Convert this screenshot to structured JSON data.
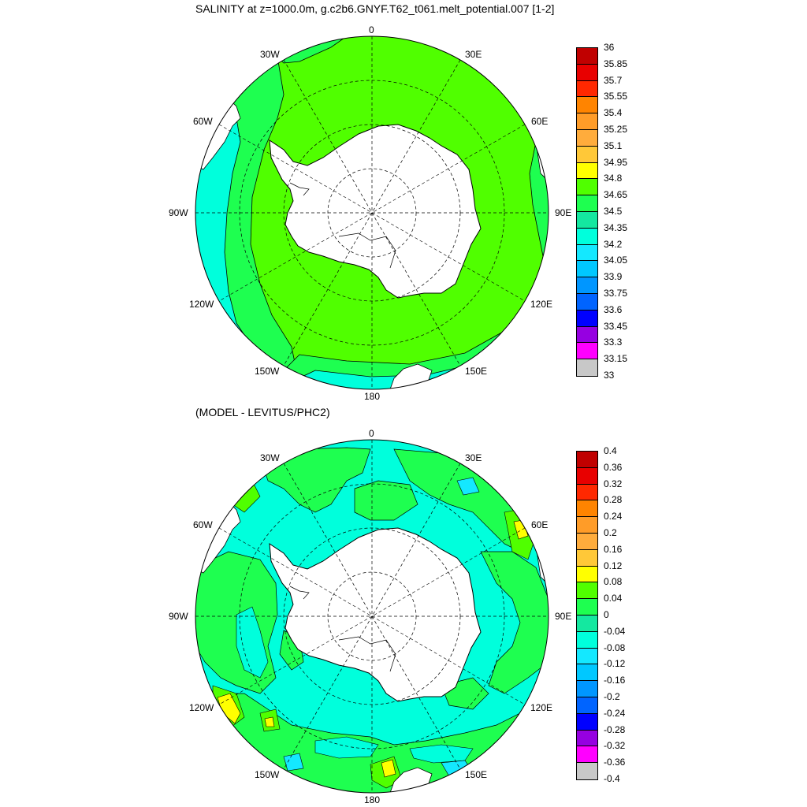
{
  "maps": [
    {
      "title": "SALINITY at z=1000.0m, g.c2b6.GNYF.T62_t061.melt_potential.007 [1-2]",
      "lon_labels": [
        "0",
        "30E",
        "60E",
        "90E",
        "120E",
        "150E",
        "180",
        "150W",
        "120W",
        "90W",
        "60W",
        "30W"
      ],
      "colorbar_labels": [
        "36",
        "35.85",
        "35.7",
        "35.55",
        "35.4",
        "35.25",
        "35.1",
        "34.95",
        "34.8",
        "34.65",
        "34.5",
        "34.35",
        "34.2",
        "34.05",
        "33.9",
        "33.75",
        "33.6",
        "33.45",
        "33.3",
        "33.15",
        "33"
      ],
      "colorbar_colors": [
        "#c00000",
        "#e80000",
        "#ff2800",
        "#ff8400",
        "#ff9c28",
        "#ffac3c",
        "#ffc838",
        "#ffff00",
        "#50ff00",
        "#1eff50",
        "#14e8a0",
        "#00ffdc",
        "#14e8ff",
        "#00c8ff",
        "#0096ff",
        "#0064ff",
        "#0000ff",
        "#9600e1",
        "#ff00ff",
        "#c8c8c8",
        "#707070"
      ]
    },
    {
      "title": "(MODEL - LEVITUS/PHC2)",
      "lon_labels": [
        "0",
        "30E",
        "60E",
        "90E",
        "120E",
        "150E",
        "180",
        "150W",
        "120W",
        "90W",
        "60W",
        "30W"
      ],
      "colorbar_labels": [
        "0.4",
        "0.36",
        "0.32",
        "0.28",
        "0.24",
        "0.2",
        "0.16",
        "0.12",
        "0.08",
        "0.04",
        "0",
        "-0.04",
        "-0.08",
        "-0.12",
        "-0.16",
        "-0.2",
        "-0.24",
        "-0.28",
        "-0.32",
        "-0.36",
        "-0.4"
      ],
      "colorbar_colors": [
        "#c00000",
        "#e80000",
        "#ff2800",
        "#ff8400",
        "#ff9c28",
        "#ffac3c",
        "#ffc838",
        "#ffff00",
        "#50ff00",
        "#1eff50",
        "#14e8a0",
        "#00ffdc",
        "#14e8ff",
        "#00c8ff",
        "#0096ff",
        "#0064ff",
        "#0000ff",
        "#9600e1",
        "#ff00ff",
        "#c8c8c8",
        "#707070"
      ]
    }
  ],
  "colors": {
    "top_map_main": "#50ff00",
    "top_map_outer_ring": "#1eff50",
    "top_map_edge": "#00ffdc",
    "bottom_map_base": "#00ffdc",
    "bottom_map_positive": "#1eff50",
    "bottom_map_high": "#50ff00",
    "bottom_map_peak": "#ffff00",
    "land": "#ffffff",
    "background": "#ffffff"
  }
}
